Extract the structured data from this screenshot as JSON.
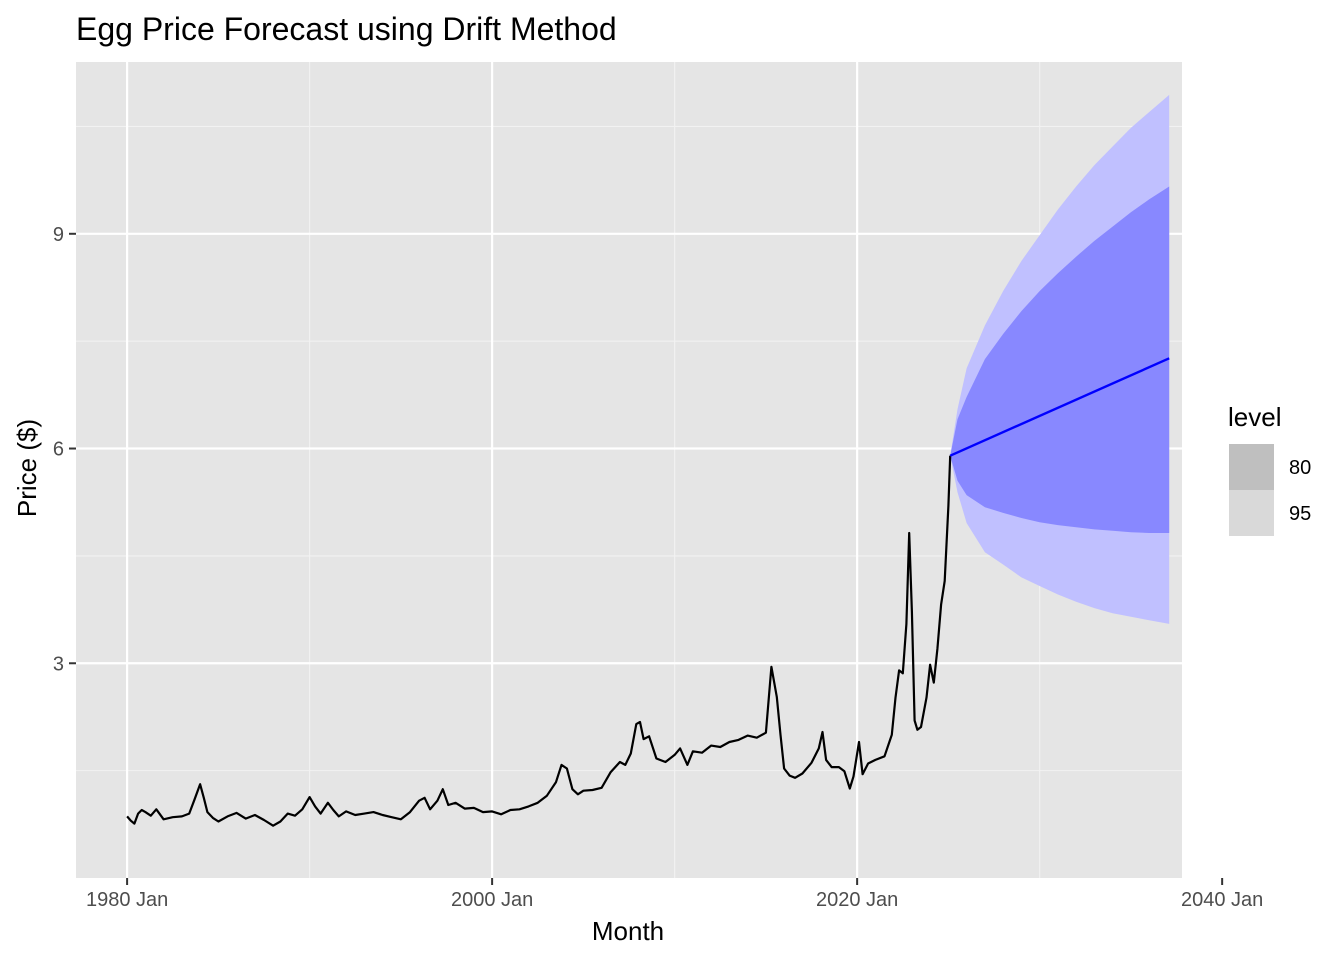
{
  "chart_data": {
    "type": "line",
    "title": "Egg Price Forecast using Drift Method",
    "xlabel": "Month",
    "ylabel": "Price ($)",
    "xlim": [
      1977.2,
      2037.8
    ],
    "ylim": [
      0.0,
      11.4
    ],
    "x_ticks": [
      {
        "value": 1980.0,
        "label": "1980 Jan"
      },
      {
        "value": 2000.0,
        "label": "2000 Jan"
      },
      {
        "value": 2020.0,
        "label": "2020 Jan"
      },
      {
        "value": 2040.0,
        "label": "2040 Jan"
      }
    ],
    "x_minor_ticks": [
      1990.0,
      2010.0,
      2030.0
    ],
    "y_ticks": [
      {
        "value": 3,
        "label": "3"
      },
      {
        "value": 6,
        "label": "6"
      },
      {
        "value": 9,
        "label": "9"
      }
    ],
    "y_minor_ticks": [
      1.5,
      4.5,
      7.5,
      10.5
    ],
    "grid": true,
    "history": {
      "color": "#000000",
      "x": [
        1980.0,
        1980.2,
        1980.4,
        1980.6,
        1980.8,
        1981.0,
        1981.3,
        1981.6,
        1982.0,
        1982.5,
        1983.0,
        1983.4,
        1983.7,
        1984.0,
        1984.2,
        1984.4,
        1984.7,
        1985.0,
        1985.5,
        1986.0,
        1986.5,
        1987.0,
        1987.5,
        1988.0,
        1988.4,
        1988.8,
        1989.2,
        1989.6,
        1990.0,
        1990.3,
        1990.6,
        1991.0,
        1991.3,
        1991.6,
        1992.0,
        1992.5,
        1993.0,
        1993.5,
        1994.0,
        1994.5,
        1995.0,
        1995.5,
        1996.0,
        1996.3,
        1996.6,
        1997.0,
        1997.3,
        1997.6,
        1998.0,
        1998.5,
        1999.0,
        1999.5,
        2000.0,
        2000.5,
        2001.0,
        2001.5,
        2002.0,
        2002.5,
        2003.0,
        2003.5,
        2003.8,
        2004.1,
        2004.4,
        2004.7,
        2005.0,
        2005.5,
        2006.0,
        2006.5,
        2007.0,
        2007.3,
        2007.6,
        2007.9,
        2008.1,
        2008.3,
        2008.6,
        2009.0,
        2009.5,
        2010.0,
        2010.3,
        2010.7,
        2011.0,
        2011.5,
        2012.0,
        2012.5,
        2013.0,
        2013.5,
        2014.0,
        2014.5,
        2015.0,
        2015.3,
        2015.6,
        2015.8,
        2016.0,
        2016.3,
        2016.6,
        2017.0,
        2017.5,
        2017.9,
        2018.1,
        2018.3,
        2018.6,
        2019.0,
        2019.3,
        2019.6,
        2019.8,
        2020.1,
        2020.3,
        2020.6,
        2021.0,
        2021.5,
        2021.9,
        2022.1,
        2022.3,
        2022.5,
        2022.7,
        2022.85,
        2023.0,
        2023.15,
        2023.3,
        2023.5,
        2023.8,
        2024.0,
        2024.2,
        2024.4,
        2024.6,
        2024.8,
        2025.0,
        2025.1
      ],
      "values": [
        0.86,
        0.8,
        0.76,
        0.9,
        0.95,
        0.92,
        0.87,
        0.96,
        0.82,
        0.85,
        0.86,
        0.9,
        1.1,
        1.31,
        1.12,
        0.92,
        0.84,
        0.79,
        0.86,
        0.91,
        0.83,
        0.88,
        0.81,
        0.73,
        0.79,
        0.9,
        0.87,
        0.96,
        1.13,
        1.0,
        0.9,
        1.05,
        0.95,
        0.86,
        0.93,
        0.88,
        0.9,
        0.92,
        0.88,
        0.85,
        0.82,
        0.92,
        1.08,
        1.12,
        0.96,
        1.08,
        1.24,
        1.02,
        1.05,
        0.97,
        0.98,
        0.92,
        0.93,
        0.89,
        0.95,
        0.96,
        1.0,
        1.05,
        1.15,
        1.34,
        1.58,
        1.53,
        1.24,
        1.17,
        1.22,
        1.23,
        1.26,
        1.48,
        1.62,
        1.58,
        1.74,
        2.15,
        2.18,
        1.94,
        1.98,
        1.67,
        1.62,
        1.72,
        1.81,
        1.58,
        1.77,
        1.75,
        1.85,
        1.83,
        1.9,
        1.93,
        1.99,
        1.96,
        2.03,
        2.95,
        2.53,
        2.0,
        1.53,
        1.43,
        1.4,
        1.46,
        1.61,
        1.81,
        2.04,
        1.65,
        1.55,
        1.55,
        1.49,
        1.25,
        1.42,
        1.9,
        1.45,
        1.6,
        1.65,
        1.7,
        2.0,
        2.52,
        2.9,
        2.86,
        3.55,
        4.82,
        3.72,
        2.2,
        2.07,
        2.11,
        2.52,
        2.98,
        2.73,
        3.2,
        3.82,
        4.15,
        5.2,
        5.9
      ],
      "label": ""
    },
    "forecast": {
      "color": "#0000ff",
      "x": [
        2025.1,
        2037.1
      ],
      "values": [
        5.9,
        7.26
      ]
    },
    "intervals": [
      {
        "level": "95",
        "color": "#c0c0ff",
        "x": [
          2025.1,
          2025.5,
          2026.0,
          2027.0,
          2028.0,
          2029.0,
          2030.0,
          2031.0,
          2032.0,
          2033.0,
          2034.0,
          2035.0,
          2036.0,
          2037.1
        ],
        "upper": [
          5.9,
          6.55,
          7.12,
          7.72,
          8.2,
          8.62,
          8.98,
          9.34,
          9.66,
          9.96,
          10.22,
          10.48,
          10.7,
          10.94
        ],
        "lower": [
          5.9,
          5.39,
          4.96,
          4.55,
          4.38,
          4.2,
          4.08,
          3.96,
          3.86,
          3.77,
          3.7,
          3.65,
          3.6,
          3.55
        ]
      },
      {
        "level": "80",
        "color": "#8888ff",
        "x": [
          2025.1,
          2025.5,
          2026.0,
          2027.0,
          2028.0,
          2029.0,
          2030.0,
          2031.0,
          2032.0,
          2033.0,
          2034.0,
          2035.0,
          2036.0,
          2037.1
        ],
        "upper": [
          5.9,
          6.41,
          6.72,
          7.25,
          7.6,
          7.92,
          8.2,
          8.45,
          8.68,
          8.9,
          9.1,
          9.3,
          9.48,
          9.66
        ],
        "lower": [
          5.9,
          5.55,
          5.35,
          5.18,
          5.1,
          5.03,
          4.97,
          4.93,
          4.9,
          4.87,
          4.85,
          4.83,
          4.82,
          4.82
        ]
      }
    ],
    "legend": {
      "title": "level",
      "placement": "right",
      "entries": [
        {
          "label": "80",
          "color": "#bfbfbf"
        },
        {
          "label": "95",
          "color": "#d9d9d9"
        }
      ]
    },
    "colors": {
      "panel": "#e5e5e5",
      "grid_major": "#ffffff",
      "grid_minor": "#f2f2f2",
      "tick": "#333333"
    }
  }
}
